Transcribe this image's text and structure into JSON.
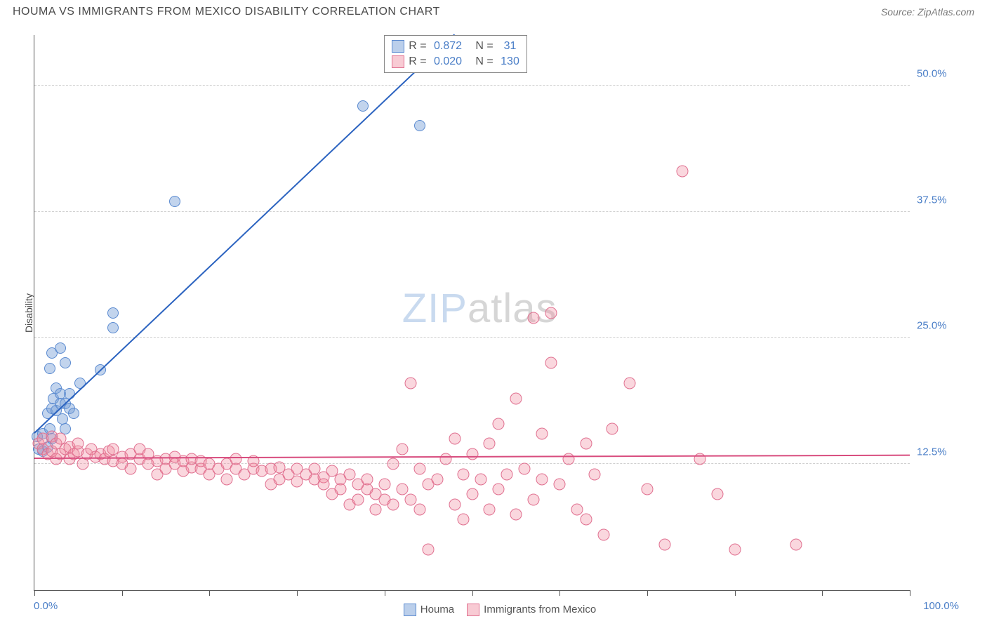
{
  "title": "HOUMA VS IMMIGRANTS FROM MEXICO DISABILITY CORRELATION CHART",
  "source": "Source: ZipAtlas.com",
  "y_axis_label": "Disability",
  "watermark": {
    "part1": "ZIP",
    "part2": "atlas"
  },
  "chart": {
    "type": "scatter",
    "background_color": "#ffffff",
    "grid_color": "#d0d0d0",
    "axis_color": "#555555",
    "xlim": [
      0,
      100
    ],
    "ylim": [
      0,
      55
    ],
    "y_gridlines": [
      12.5,
      25.0,
      37.5,
      50.0
    ],
    "y_tick_labels": [
      "12.5%",
      "25.0%",
      "37.5%",
      "50.0%"
    ],
    "x_ticks": [
      0,
      10,
      20,
      30,
      40,
      50,
      60,
      70,
      80,
      90,
      100
    ],
    "x_min_label": "0.0%",
    "x_max_label": "100.0%",
    "series": [
      {
        "name": "Houma",
        "color_fill": "rgba(120,160,215,0.45)",
        "color_stroke": "#5a8ad0",
        "marker_size": 16,
        "r_value": "0.872",
        "n_value": "31",
        "trend": {
          "x1": 0,
          "y1": 15.5,
          "x2": 48,
          "y2": 55,
          "color": "#2b63c0",
          "width": 2
        },
        "points": [
          [
            0.3,
            15.2
          ],
          [
            0.5,
            14.0
          ],
          [
            1.0,
            13.8
          ],
          [
            1.0,
            15.5
          ],
          [
            1.5,
            14.2
          ],
          [
            1.5,
            17.5
          ],
          [
            1.8,
            16.0
          ],
          [
            2.0,
            18.0
          ],
          [
            2.0,
            15.0
          ],
          [
            2.2,
            19.0
          ],
          [
            2.5,
            17.8
          ],
          [
            2.5,
            20.0
          ],
          [
            3.0,
            18.5
          ],
          [
            3.0,
            19.5
          ],
          [
            3.2,
            17.0
          ],
          [
            3.5,
            16.0
          ],
          [
            3.5,
            18.5
          ],
          [
            4.0,
            18.0
          ],
          [
            4.0,
            19.5
          ],
          [
            4.5,
            17.5
          ],
          [
            5.2,
            20.5
          ],
          [
            1.8,
            22.0
          ],
          [
            2.0,
            23.5
          ],
          [
            3.0,
            24.0
          ],
          [
            3.5,
            22.5
          ],
          [
            7.5,
            21.8
          ],
          [
            9.0,
            27.5
          ],
          [
            9.0,
            26.0
          ],
          [
            16.0,
            38.5
          ],
          [
            37.5,
            48.0
          ],
          [
            44.0,
            46.0
          ]
        ]
      },
      {
        "name": "Immigrants from Mexico",
        "color_fill": "rgba(240,140,160,0.35)",
        "color_stroke": "#e07090",
        "marker_size": 17,
        "r_value": "0.020",
        "n_value": "130",
        "trend": {
          "x1": 0,
          "y1": 13.0,
          "x2": 100,
          "y2": 13.3,
          "color": "#d84c7e",
          "width": 2
        },
        "points": [
          [
            0.5,
            14.5
          ],
          [
            1,
            14.0
          ],
          [
            1,
            15.0
          ],
          [
            1.5,
            13.5
          ],
          [
            2,
            13.8
          ],
          [
            2,
            15.2
          ],
          [
            2.5,
            13.0
          ],
          [
            2.5,
            14.5
          ],
          [
            3,
            15.0
          ],
          [
            3,
            13.5
          ],
          [
            3.5,
            14.0
          ],
          [
            4,
            14.2
          ],
          [
            4,
            13.0
          ],
          [
            4.5,
            13.5
          ],
          [
            5,
            13.8
          ],
          [
            5,
            14.5
          ],
          [
            5.5,
            12.5
          ],
          [
            6,
            13.5
          ],
          [
            6.5,
            14.0
          ],
          [
            7,
            13.2
          ],
          [
            7.5,
            13.5
          ],
          [
            8,
            13.0
          ],
          [
            8.5,
            13.8
          ],
          [
            9,
            12.8
          ],
          [
            9,
            14.0
          ],
          [
            10,
            13.2
          ],
          [
            10,
            12.5
          ],
          [
            11,
            13.5
          ],
          [
            11,
            12.0
          ],
          [
            12,
            13.0
          ],
          [
            12,
            14.0
          ],
          [
            13,
            12.5
          ],
          [
            13,
            13.5
          ],
          [
            14,
            12.8
          ],
          [
            14,
            11.5
          ],
          [
            15,
            13.0
          ],
          [
            15,
            12.0
          ],
          [
            16,
            12.5
          ],
          [
            16,
            13.2
          ],
          [
            17,
            11.8
          ],
          [
            17,
            12.8
          ],
          [
            18,
            12.2
          ],
          [
            18,
            13.0
          ],
          [
            19,
            12.0
          ],
          [
            19,
            12.8
          ],
          [
            20,
            11.5
          ],
          [
            20,
            12.5
          ],
          [
            21,
            12.0
          ],
          [
            22,
            12.5
          ],
          [
            22,
            11.0
          ],
          [
            23,
            12.0
          ],
          [
            23,
            13.0
          ],
          [
            24,
            11.5
          ],
          [
            25,
            12.0
          ],
          [
            25,
            12.8
          ],
          [
            26,
            11.8
          ],
          [
            27,
            12.0
          ],
          [
            27,
            10.5
          ],
          [
            28,
            12.2
          ],
          [
            28,
            11.0
          ],
          [
            29,
            11.5
          ],
          [
            30,
            12.0
          ],
          [
            30,
            10.8
          ],
          [
            31,
            11.5
          ],
          [
            32,
            11.0
          ],
          [
            32,
            12.0
          ],
          [
            33,
            11.2
          ],
          [
            33,
            10.5
          ],
          [
            34,
            11.8
          ],
          [
            34,
            9.5
          ],
          [
            35,
            11.0
          ],
          [
            35,
            10.0
          ],
          [
            36,
            11.5
          ],
          [
            36,
            8.5
          ],
          [
            37,
            10.5
          ],
          [
            37,
            9.0
          ],
          [
            38,
            10.0
          ],
          [
            38,
            11.0
          ],
          [
            39,
            9.5
          ],
          [
            39,
            8.0
          ],
          [
            40,
            10.5
          ],
          [
            40,
            9.0
          ],
          [
            41,
            8.5
          ],
          [
            41,
            12.5
          ],
          [
            42,
            10.0
          ],
          [
            42,
            14.0
          ],
          [
            43,
            9.0
          ],
          [
            43,
            20.5
          ],
          [
            44,
            12.0
          ],
          [
            44,
            8.0
          ],
          [
            45,
            10.5
          ],
          [
            45,
            4.0
          ],
          [
            46,
            11.0
          ],
          [
            47,
            13.0
          ],
          [
            48,
            15.0
          ],
          [
            48,
            8.5
          ],
          [
            49,
            11.5
          ],
          [
            49,
            7.0
          ],
          [
            50,
            13.5
          ],
          [
            50,
            9.5
          ],
          [
            51,
            11.0
          ],
          [
            52,
            14.5
          ],
          [
            52,
            8.0
          ],
          [
            53,
            16.5
          ],
          [
            53,
            10.0
          ],
          [
            54,
            11.5
          ],
          [
            55,
            19.0
          ],
          [
            55,
            7.5
          ],
          [
            56,
            12.0
          ],
          [
            57,
            27.0
          ],
          [
            57,
            9.0
          ],
          [
            58,
            11.0
          ],
          [
            58,
            15.5
          ],
          [
            59,
            22.5
          ],
          [
            59,
            27.5
          ],
          [
            60,
            10.5
          ],
          [
            61,
            13.0
          ],
          [
            62,
            8.0
          ],
          [
            63,
            14.5
          ],
          [
            63,
            7.0
          ],
          [
            64,
            11.5
          ],
          [
            65,
            5.5
          ],
          [
            66,
            16.0
          ],
          [
            68,
            20.5
          ],
          [
            70,
            10.0
          ],
          [
            72,
            4.5
          ],
          [
            74,
            41.5
          ],
          [
            76,
            13.0
          ],
          [
            78,
            9.5
          ],
          [
            80,
            4.0
          ],
          [
            87,
            4.5
          ]
        ]
      }
    ]
  },
  "legend_stats": {
    "rows": [
      {
        "swatch": "blue",
        "r": "0.872",
        "n": "31"
      },
      {
        "swatch": "pink",
        "r": "0.020",
        "n": "130"
      }
    ]
  },
  "bottom_legend": [
    {
      "swatch": "blue",
      "label": "Houma"
    },
    {
      "swatch": "pink",
      "label": "Immigrants from Mexico"
    }
  ]
}
